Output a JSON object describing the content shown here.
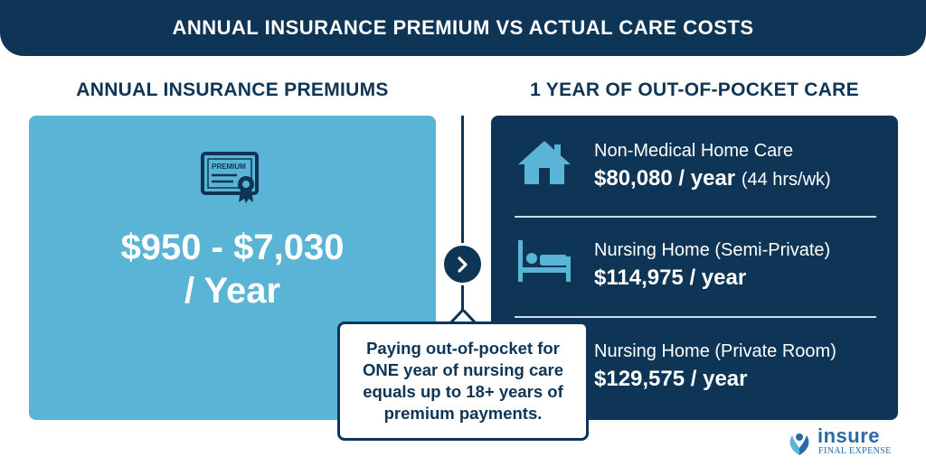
{
  "header": {
    "title": "ANNUAL INSURANCE PREMIUM VS ACTUAL CARE COSTS"
  },
  "left": {
    "heading": "ANNUAL INSURANCE PREMIUMS",
    "icon": "premium-certificate-icon",
    "icon_label": "PREMIUM",
    "amount_line1": "$950 - $7,030",
    "amount_line2": "/ Year",
    "panel_color": "#5ab4d6"
  },
  "right": {
    "heading": "1 YEAR OF OUT-OF-POCKET CARE",
    "panel_color": "#0e3556",
    "items": [
      {
        "icon": "house-icon",
        "label": "Non-Medical Home Care",
        "cost": "$80,080 / year",
        "note": "(44 hrs/wk)"
      },
      {
        "icon": "bed-icon",
        "label": "Nursing Home (Semi-Private)",
        "cost": "$114,975 / year",
        "note": ""
      },
      {
        "icon": "bed-icon",
        "label": "Nursing Home (Private Room)",
        "cost": "$129,575 / year",
        "note": ""
      }
    ]
  },
  "callout": {
    "line1": "Paying out-of-pocket for",
    "line2": "ONE year of nursing care",
    "line3": "equals up to 18+ years of",
    "line4": "premium payments."
  },
  "logo": {
    "name": "insure",
    "tagline": "FINAL EXPENSE"
  }
}
